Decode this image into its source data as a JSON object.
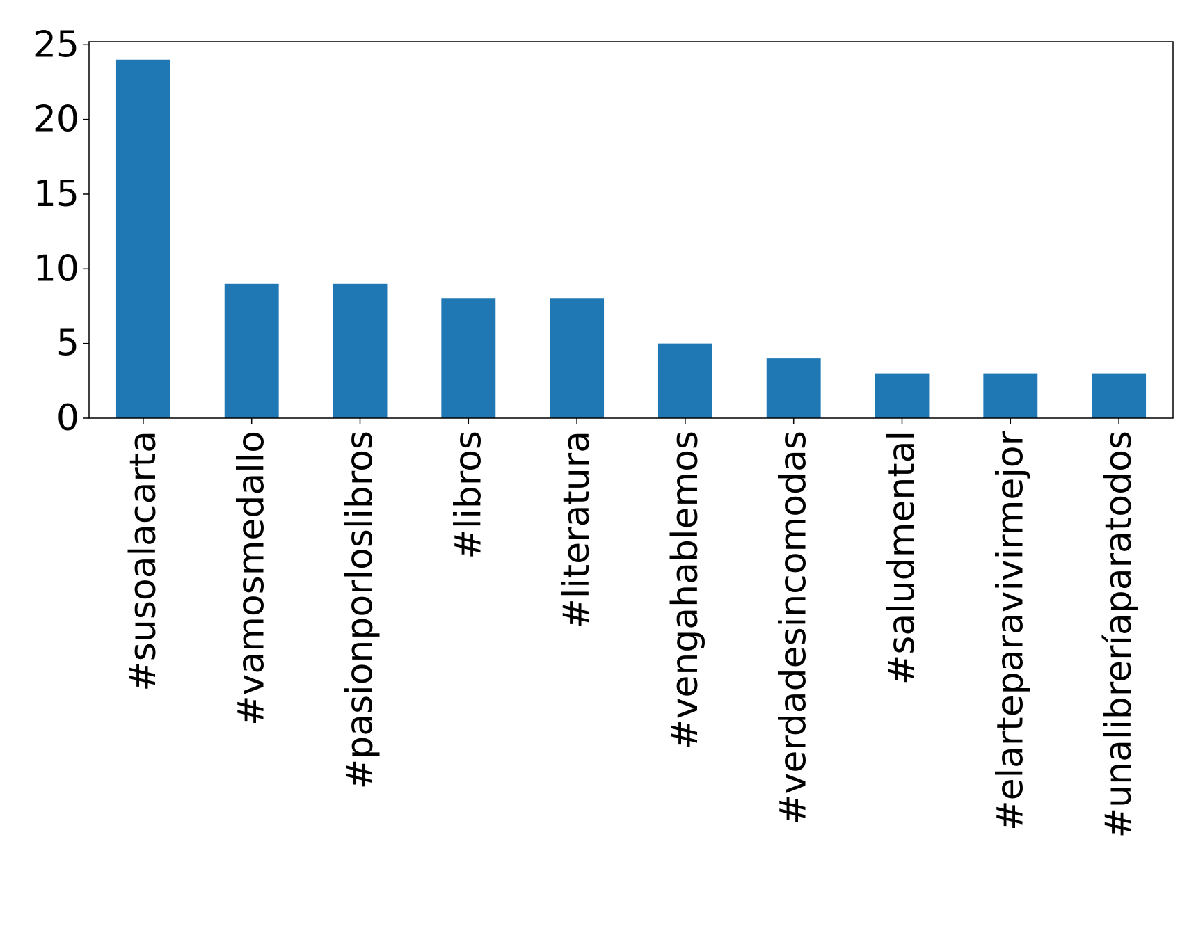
{
  "chart_data": {
    "type": "bar",
    "title": "",
    "xlabel": "",
    "ylabel": "",
    "categories": [
      "#susoalacarta",
      "#vamosmedallo",
      "#pasionporloslibros",
      "#libros",
      "#literatura",
      "#vengahablemos",
      "#verdadesincomodas",
      "#saludmental",
      "#elarteparavivirmejor",
      "#unalibreríaparatodos"
    ],
    "values": [
      24,
      9,
      9,
      8,
      8,
      5,
      4,
      3,
      3,
      3
    ],
    "ylim": [
      0,
      25.2
    ],
    "yticks": [
      0,
      5,
      10,
      15,
      20,
      25
    ],
    "bar_color": "#1f77b4",
    "grid": false,
    "legend": "none"
  }
}
